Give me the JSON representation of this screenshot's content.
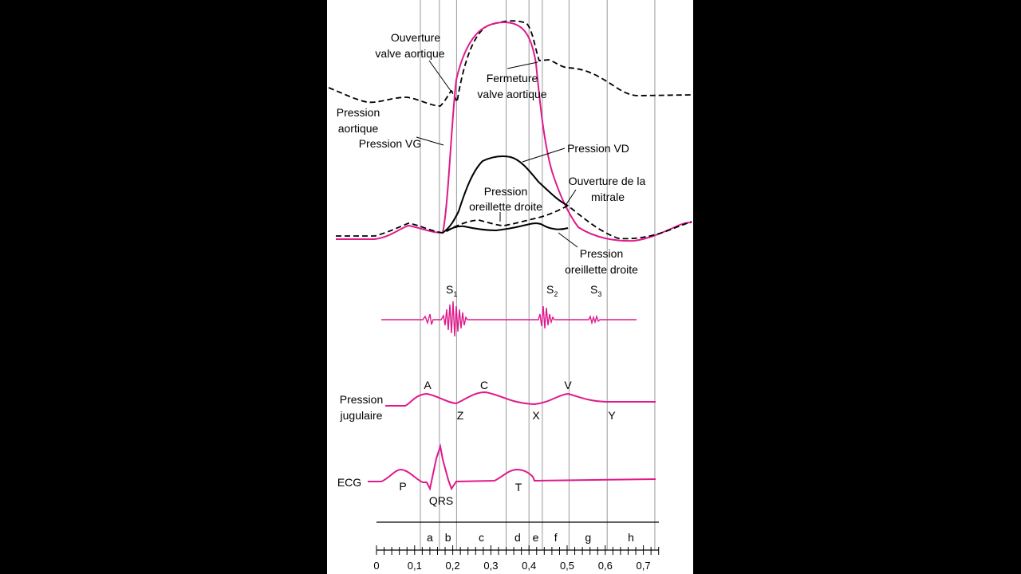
{
  "colors": {
    "background": "#000000",
    "panel": "#ffffff",
    "magenta": "#e0198c",
    "ink": "#000000",
    "guide": "#9a9a9a"
  },
  "labels": {
    "valve_open_l1": "Ouverture",
    "valve_open_l2": "valve aortique",
    "valve_close_l1": "Fermeture",
    "valve_close_l2": "valve aortique",
    "aortic_l1": "Pression",
    "aortic_l2": "aortique",
    "lv": "Pression VG",
    "rv": "Pression VD",
    "mitral_l1": "Ouverture de la",
    "mitral_l2": "mitrale",
    "ra_upper_l1": "Pression",
    "ra_upper_l2": "oreillette droite",
    "ra_lower_l1": "Pression",
    "ra_lower_l2": "oreillette droite",
    "jug_l1": "Pression",
    "jug_l2": "jugulaire",
    "ecg": "ECG"
  },
  "heart_sounds": [
    {
      "base": "S",
      "sub": "1"
    },
    {
      "base": "S",
      "sub": "2"
    },
    {
      "base": "S",
      "sub": "3"
    }
  ],
  "jugular_waves": [
    "A",
    "C",
    "V",
    "Z",
    "X",
    "Y"
  ],
  "ecg_waves": [
    "P",
    "QRS",
    "T"
  ],
  "phases": [
    "a",
    "b",
    "c",
    "d",
    "e",
    "f",
    "g",
    "h"
  ],
  "time_axis": {
    "unit": "s",
    "min": 0,
    "max": 0.73,
    "minor_step": 0.02,
    "tick_labels": [
      "0",
      "0,1",
      "0,2",
      "0,3",
      "0,4",
      "0,5",
      "0,6",
      "0,7"
    ],
    "phase_boundaries_s": [
      0.115,
      0.165,
      0.21,
      0.34,
      0.4,
      0.435,
      0.505,
      0.605,
      0.73
    ]
  }
}
